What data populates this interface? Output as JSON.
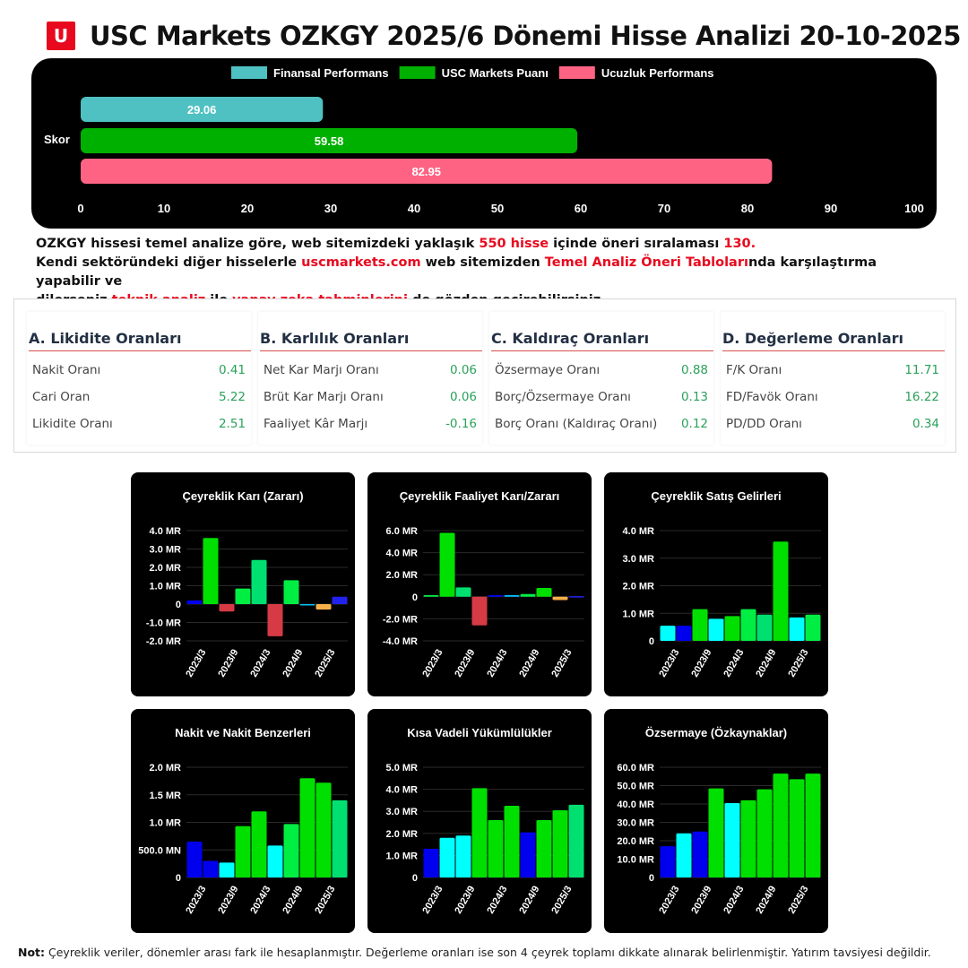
{
  "header": {
    "logo_letter": "U",
    "title": "USC Markets OZKGY 2025/6 Dönemi Hisse Analizi 20-10-2025"
  },
  "score_chart": {
    "type": "bar",
    "orientation": "horizontal",
    "category": "Skor",
    "series": [
      {
        "name": "Finansal Performans",
        "value": 29.06,
        "color": "#4fc1c2"
      },
      {
        "name": "USC Markets Puanı",
        "value": 59.58,
        "color": "#00b000"
      },
      {
        "name": "Ucuzluk Performans",
        "value": 82.95,
        "color": "#ff6384"
      }
    ],
    "xticks": [
      "0",
      "10",
      "20",
      "30",
      "40",
      "50",
      "60",
      "70",
      "80",
      "90",
      "100"
    ],
    "xlim": [
      0,
      100
    ]
  },
  "intro": {
    "l1_a": "OZKGY hissesi temel analize göre, web sitemizdeki yaklaşık ",
    "l1_b": "550 hisse",
    "l1_c": " içinde öneri sıralaması ",
    "l1_d": "130.",
    "l2_a": "Kendi sektöründeki diğer hisselerle ",
    "l2_b": "uscmarkets.com",
    "l2_c": " web sitemizden ",
    "l2_d": "Temel Analiz Öneri Tabloları",
    "l2_e": "nda karşılaştırma yapabilir ve",
    "l3_a": "dilerseniz ",
    "l3_b": "teknik analiz",
    "l3_c": " ile ",
    "l3_d": "yapay zeka tahminlerini",
    "l3_e": " de gözden geçirebilirsiniz."
  },
  "ratios": [
    {
      "title": "A. Likidite Oranları",
      "rows": [
        {
          "label": "Nakit Oranı",
          "value": "0.41"
        },
        {
          "label": "Cari Oran",
          "value": "5.22"
        },
        {
          "label": "Likidite Oranı",
          "value": "2.51"
        }
      ]
    },
    {
      "title": "B. Karlılık Oranları",
      "rows": [
        {
          "label": "Net Kar Marjı Oranı",
          "value": "0.06"
        },
        {
          "label": "Brüt Kar Marjı Oranı",
          "value": "0.06"
        },
        {
          "label": "Faaliyet Kâr Marjı",
          "value": "-0.16"
        }
      ]
    },
    {
      "title": "C. Kaldıraç Oranları",
      "rows": [
        {
          "label": "Özsermaye Oranı",
          "value": "0.88"
        },
        {
          "label": "Borç/Özsermaye Oranı",
          "value": "0.13"
        },
        {
          "label": "Borç Oranı (Kaldıraç Oranı)",
          "value": "0.12"
        }
      ]
    },
    {
      "title": "D. Değerleme Oranları",
      "rows": [
        {
          "label": "F/K Oranı",
          "value": "11.71"
        },
        {
          "label": "FD/Favök Oranı",
          "value": "16.22"
        },
        {
          "label": "PD/DD Oranı",
          "value": "0.34"
        }
      ]
    }
  ],
  "chart_data": [
    {
      "type": "bar",
      "title": "Çeyreklik Karı (Zararı)",
      "x": [
        "2023/3",
        "2023/6",
        "2023/9",
        "2023/12",
        "2024/3",
        "2024/6",
        "2024/9",
        "2024/12",
        "2025/3",
        "2025/6"
      ],
      "xticks": [
        "2023/3",
        "2023/9",
        "2024/3",
        "2024/9",
        "2025/3"
      ],
      "values": [
        0.2,
        3.6,
        -0.4,
        0.85,
        2.4,
        -1.75,
        1.3,
        -0.05,
        -0.3,
        0.4
      ],
      "colors": [
        "#0000ee",
        "#00e000",
        "#d63a45",
        "#00ee44",
        "#00e070",
        "#d63a45",
        "#00ee44",
        "#00bfff",
        "#f5b04a",
        "#2222ee"
      ],
      "ylim": [
        -2.0,
        4.0
      ],
      "yticks": [
        {
          "v": 4,
          "t": "4.0 MR"
        },
        {
          "v": 3,
          "t": "3.0 MR"
        },
        {
          "v": 2,
          "t": "2.0 MR"
        },
        {
          "v": 1,
          "t": "1.0 MR"
        },
        {
          "v": 0,
          "t": "0"
        },
        {
          "v": -1,
          "t": "-1.0 MR"
        },
        {
          "v": -2,
          "t": "-2.0 MR"
        }
      ]
    },
    {
      "type": "bar",
      "title": "Çeyreklik Faaliyet Karı/Zararı",
      "x": [
        "2023/3",
        "2023/6",
        "2023/9",
        "2023/12",
        "2024/3",
        "2024/6",
        "2024/9",
        "2024/12",
        "2025/3",
        "2025/6"
      ],
      "xticks": [
        "2023/3",
        "2023/9",
        "2024/3",
        "2024/9",
        "2025/3"
      ],
      "values": [
        0.15,
        5.8,
        0.85,
        -2.6,
        0.15,
        0.15,
        0.25,
        0.8,
        -0.3,
        0.05
      ],
      "colors": [
        "#00ee44",
        "#00e000",
        "#00e070",
        "#d63a45",
        "#0000ee",
        "#00bfff",
        "#00ee44",
        "#00e000",
        "#f5b04a",
        "#2222ee"
      ],
      "ylim": [
        -4.0,
        6.0
      ],
      "yticks": [
        {
          "v": 6,
          "t": "6.0 MR"
        },
        {
          "v": 4,
          "t": "4.0 MR"
        },
        {
          "v": 2,
          "t": "2.0 MR"
        },
        {
          "v": 0,
          "t": "0"
        },
        {
          "v": -2,
          "t": "-2.0 MR"
        },
        {
          "v": -4,
          "t": "-4.0 MR"
        }
      ]
    },
    {
      "type": "bar",
      "title": "Çeyreklik Satış Gelirleri",
      "x": [
        "2023/3",
        "2023/6",
        "2023/9",
        "2023/12",
        "2024/3",
        "2024/6",
        "2024/9",
        "2024/12",
        "2025/3",
        "2025/6"
      ],
      "xticks": [
        "2023/3",
        "2023/9",
        "2024/3",
        "2024/9",
        "2025/3"
      ],
      "values": [
        0.55,
        0.55,
        1.15,
        0.8,
        0.9,
        1.15,
        0.95,
        3.6,
        0.85,
        0.95
      ],
      "colors": [
        "#00ffff",
        "#0000ee",
        "#00e000",
        "#00ffff",
        "#00e000",
        "#00ee44",
        "#00e070",
        "#00e000",
        "#00ffff",
        "#00ee44"
      ],
      "ylim": [
        0,
        4.0
      ],
      "yticks": [
        {
          "v": 4,
          "t": "4.0 MR"
        },
        {
          "v": 3,
          "t": "3.0 MR"
        },
        {
          "v": 2,
          "t": "2.0 MR"
        },
        {
          "v": 1,
          "t": "1.0 MR"
        },
        {
          "v": 0,
          "t": "0"
        }
      ]
    },
    {
      "type": "bar",
      "title": "Nakit ve Nakit Benzerleri",
      "x": [
        "2023/3",
        "2023/6",
        "2023/9",
        "2023/12",
        "2024/3",
        "2024/6",
        "2024/9",
        "2024/12",
        "2025/3",
        "2025/6"
      ],
      "xticks": [
        "2023/3",
        "2023/9",
        "2024/3",
        "2024/9",
        "2025/3"
      ],
      "values": [
        0.65,
        0.3,
        0.27,
        0.93,
        1.2,
        0.58,
        0.97,
        1.8,
        1.72,
        1.4
      ],
      "colors": [
        "#0000ee",
        "#0000ee",
        "#00ffff",
        "#00e000",
        "#00e000",
        "#00ffff",
        "#00ee44",
        "#00e000",
        "#00e000",
        "#00e070"
      ],
      "ylim": [
        0,
        2.0
      ],
      "yticks": [
        {
          "v": 2,
          "t": "2.0 MR"
        },
        {
          "v": 1.5,
          "t": "1.5 MR"
        },
        {
          "v": 1,
          "t": "1.0 MR"
        },
        {
          "v": 0.5,
          "t": "500.0 MN"
        },
        {
          "v": 0,
          "t": "0"
        }
      ]
    },
    {
      "type": "bar",
      "title": "Kısa Vadeli Yükümlülükler",
      "x": [
        "2023/3",
        "2023/6",
        "2023/9",
        "2023/12",
        "2024/3",
        "2024/6",
        "2024/9",
        "2024/12",
        "2025/3",
        "2025/6"
      ],
      "xticks": [
        "2023/3",
        "2023/9",
        "2024/3",
        "2024/9",
        "2025/3"
      ],
      "values": [
        1.3,
        1.8,
        1.9,
        4.05,
        2.6,
        3.25,
        2.05,
        2.6,
        3.05,
        3.3
      ],
      "colors": [
        "#0000ee",
        "#00ffff",
        "#00ffff",
        "#00e000",
        "#00e000",
        "#00e000",
        "#0000ee",
        "#00e000",
        "#00e000",
        "#00e070"
      ],
      "ylim": [
        0,
        5.0
      ],
      "yticks": [
        {
          "v": 5,
          "t": "5.0 MR"
        },
        {
          "v": 4,
          "t": "4.0 MR"
        },
        {
          "v": 3,
          "t": "3.0 MR"
        },
        {
          "v": 2,
          "t": "2.0 MR"
        },
        {
          "v": 1,
          "t": "1.0 MR"
        },
        {
          "v": 0,
          "t": "0"
        }
      ]
    },
    {
      "type": "bar",
      "title": "Özsermaye (Özkaynaklar)",
      "x": [
        "2023/3",
        "2023/6",
        "2023/9",
        "2023/12",
        "2024/3",
        "2024/6",
        "2024/9",
        "2024/12",
        "2025/3",
        "2025/6"
      ],
      "xticks": [
        "2023/3",
        "2023/9",
        "2024/3",
        "2024/9",
        "2025/3"
      ],
      "values": [
        17,
        24,
        25,
        48.5,
        40.5,
        42,
        48,
        56.5,
        53.5,
        56.5
      ],
      "colors": [
        "#0000ee",
        "#00ffff",
        "#0000ee",
        "#00e000",
        "#00ffff",
        "#00e000",
        "#00e000",
        "#00e000",
        "#00e000",
        "#00e000"
      ],
      "ylim": [
        0,
        60
      ],
      "yticks": [
        {
          "v": 60,
          "t": "60.0 MR"
        },
        {
          "v": 50,
          "t": "50.0 MR"
        },
        {
          "v": 40,
          "t": "40.0 MR"
        },
        {
          "v": 30,
          "t": "30.0 MR"
        },
        {
          "v": 20,
          "t": "20.0 MR"
        },
        {
          "v": 10,
          "t": "10.0 MR"
        },
        {
          "v": 0,
          "t": "0"
        }
      ]
    }
  ],
  "note": {
    "bold": "Not:",
    "text": " Çeyreklik veriler, dönemler arası fark ile hesaplanmıştır. Değerleme oranları ise son 4 çeyrek toplamı dikkate alınarak belirlenmiştir. Yatırım tavsiyesi değildir."
  }
}
